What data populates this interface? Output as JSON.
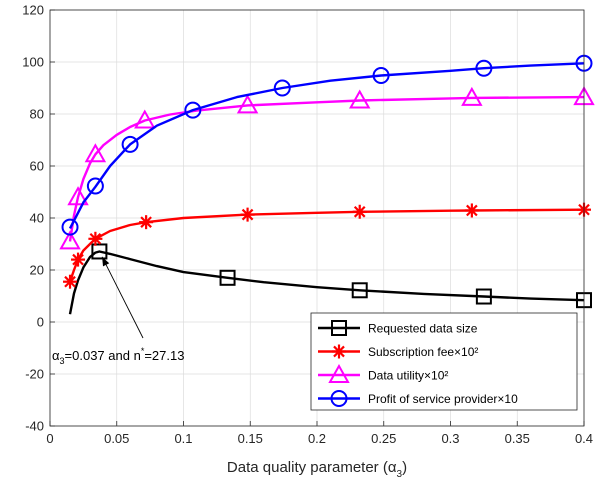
{
  "chart_data": {
    "type": "line",
    "xlabel_text": "Data quality parameter (",
    "xlabel_symbol": "α",
    "xlabel_sub": "3",
    "xlabel_close": ")",
    "xlim": [
      0,
      0.4
    ],
    "ylim": [
      -40,
      120
    ],
    "x_ticks": [
      0,
      0.05,
      0.1,
      0.15,
      0.2,
      0.25,
      0.3,
      0.35,
      0.4
    ],
    "x_tick_labels": [
      "0",
      "0.05",
      "0.1",
      "0.15",
      "0.2",
      "0.25",
      "0.3",
      "0.35",
      "0.4"
    ],
    "y_ticks": [
      -40,
      -20,
      0,
      20,
      40,
      60,
      80,
      100,
      120
    ],
    "y_tick_labels": [
      "-40",
      "-20",
      "0",
      "20",
      "40",
      "60",
      "80",
      "100",
      "120"
    ],
    "grid": true,
    "legend_position": "bottom-right",
    "series": [
      {
        "name": "Requested data size",
        "color": "#000000",
        "marker": "square",
        "line": [
          [
            0.015,
            3
          ],
          [
            0.018,
            11
          ],
          [
            0.021,
            16
          ],
          [
            0.025,
            21
          ],
          [
            0.03,
            25
          ],
          [
            0.034,
            26.7
          ],
          [
            0.037,
            27.13
          ],
          [
            0.045,
            26.2
          ],
          [
            0.06,
            24.2
          ],
          [
            0.08,
            21.5
          ],
          [
            0.1,
            19.2
          ],
          [
            0.133,
            17
          ],
          [
            0.16,
            15.3
          ],
          [
            0.2,
            13.4
          ],
          [
            0.232,
            12.2
          ],
          [
            0.28,
            10.8
          ],
          [
            0.325,
            9.8
          ],
          [
            0.36,
            9
          ],
          [
            0.4,
            8.4
          ]
        ],
        "markers": [
          [
            0.037,
            27.13
          ],
          [
            0.133,
            17
          ],
          [
            0.232,
            12.2
          ],
          [
            0.325,
            9.8
          ],
          [
            0.4,
            8.4
          ]
        ]
      },
      {
        "name": "Subscription fee×10²",
        "color": "#ff0000",
        "marker": "star",
        "line": [
          [
            0.015,
            15.5
          ],
          [
            0.018,
            20
          ],
          [
            0.021,
            24
          ],
          [
            0.025,
            27.5
          ],
          [
            0.03,
            30
          ],
          [
            0.034,
            32
          ],
          [
            0.045,
            35
          ],
          [
            0.06,
            37.3
          ],
          [
            0.072,
            38.4
          ],
          [
            0.1,
            40
          ],
          [
            0.148,
            41.3
          ],
          [
            0.2,
            42
          ],
          [
            0.232,
            42.4
          ],
          [
            0.3,
            42.8
          ],
          [
            0.316,
            42.9
          ],
          [
            0.4,
            43.2
          ]
        ],
        "markers": [
          [
            0.015,
            15.5
          ],
          [
            0.021,
            24
          ],
          [
            0.034,
            32
          ],
          [
            0.072,
            38.4
          ],
          [
            0.148,
            41.3
          ],
          [
            0.232,
            42.4
          ],
          [
            0.316,
            42.9
          ],
          [
            0.4,
            43.2
          ]
        ]
      },
      {
        "name": "Data utility×10²",
        "color": "#ff00ff",
        "marker": "triangle",
        "line": [
          [
            0.015,
            31
          ],
          [
            0.018,
            41
          ],
          [
            0.021,
            48
          ],
          [
            0.025,
            55
          ],
          [
            0.03,
            61
          ],
          [
            0.034,
            64.5
          ],
          [
            0.04,
            68
          ],
          [
            0.05,
            72
          ],
          [
            0.06,
            75
          ],
          [
            0.071,
            77.5
          ],
          [
            0.09,
            79.8
          ],
          [
            0.11,
            81.3
          ],
          [
            0.148,
            83.3
          ],
          [
            0.2,
            84.5
          ],
          [
            0.232,
            85.2
          ],
          [
            0.3,
            86
          ],
          [
            0.316,
            86.2
          ],
          [
            0.4,
            86.5
          ]
        ],
        "markers": [
          [
            0.015,
            31
          ],
          [
            0.021,
            48
          ],
          [
            0.034,
            64.5
          ],
          [
            0.071,
            77.5
          ],
          [
            0.148,
            83.3
          ],
          [
            0.232,
            85.2
          ],
          [
            0.316,
            86.2
          ],
          [
            0.4,
            86.5
          ]
        ]
      },
      {
        "name": "Profit of service provider×10",
        "color": "#0000ff",
        "marker": "circle",
        "line": [
          [
            0.015,
            36
          ],
          [
            0.025,
            46
          ],
          [
            0.034,
            52
          ],
          [
            0.045,
            60
          ],
          [
            0.06,
            68.3
          ],
          [
            0.08,
            75.5
          ],
          [
            0.107,
            81.5
          ],
          [
            0.14,
            86.5
          ],
          [
            0.174,
            90
          ],
          [
            0.21,
            92.8
          ],
          [
            0.248,
            94.8
          ],
          [
            0.3,
            96.6
          ],
          [
            0.325,
            97.6
          ],
          [
            0.36,
            98.6
          ],
          [
            0.4,
            99.5
          ]
        ],
        "markers": [
          [
            0.015,
            36.5
          ],
          [
            0.034,
            52.3
          ],
          [
            0.06,
            68.3
          ],
          [
            0.107,
            81.5
          ],
          [
            0.174,
            90
          ],
          [
            0.248,
            94.8
          ],
          [
            0.325,
            97.6
          ],
          [
            0.4,
            99.5
          ]
        ]
      }
    ],
    "annotation": {
      "pre": "α",
      "sub": "3",
      "mid": "=0.037 and n",
      "sup": "*",
      "post": "=27.13",
      "point": [
        0.037,
        27.13
      ]
    }
  }
}
